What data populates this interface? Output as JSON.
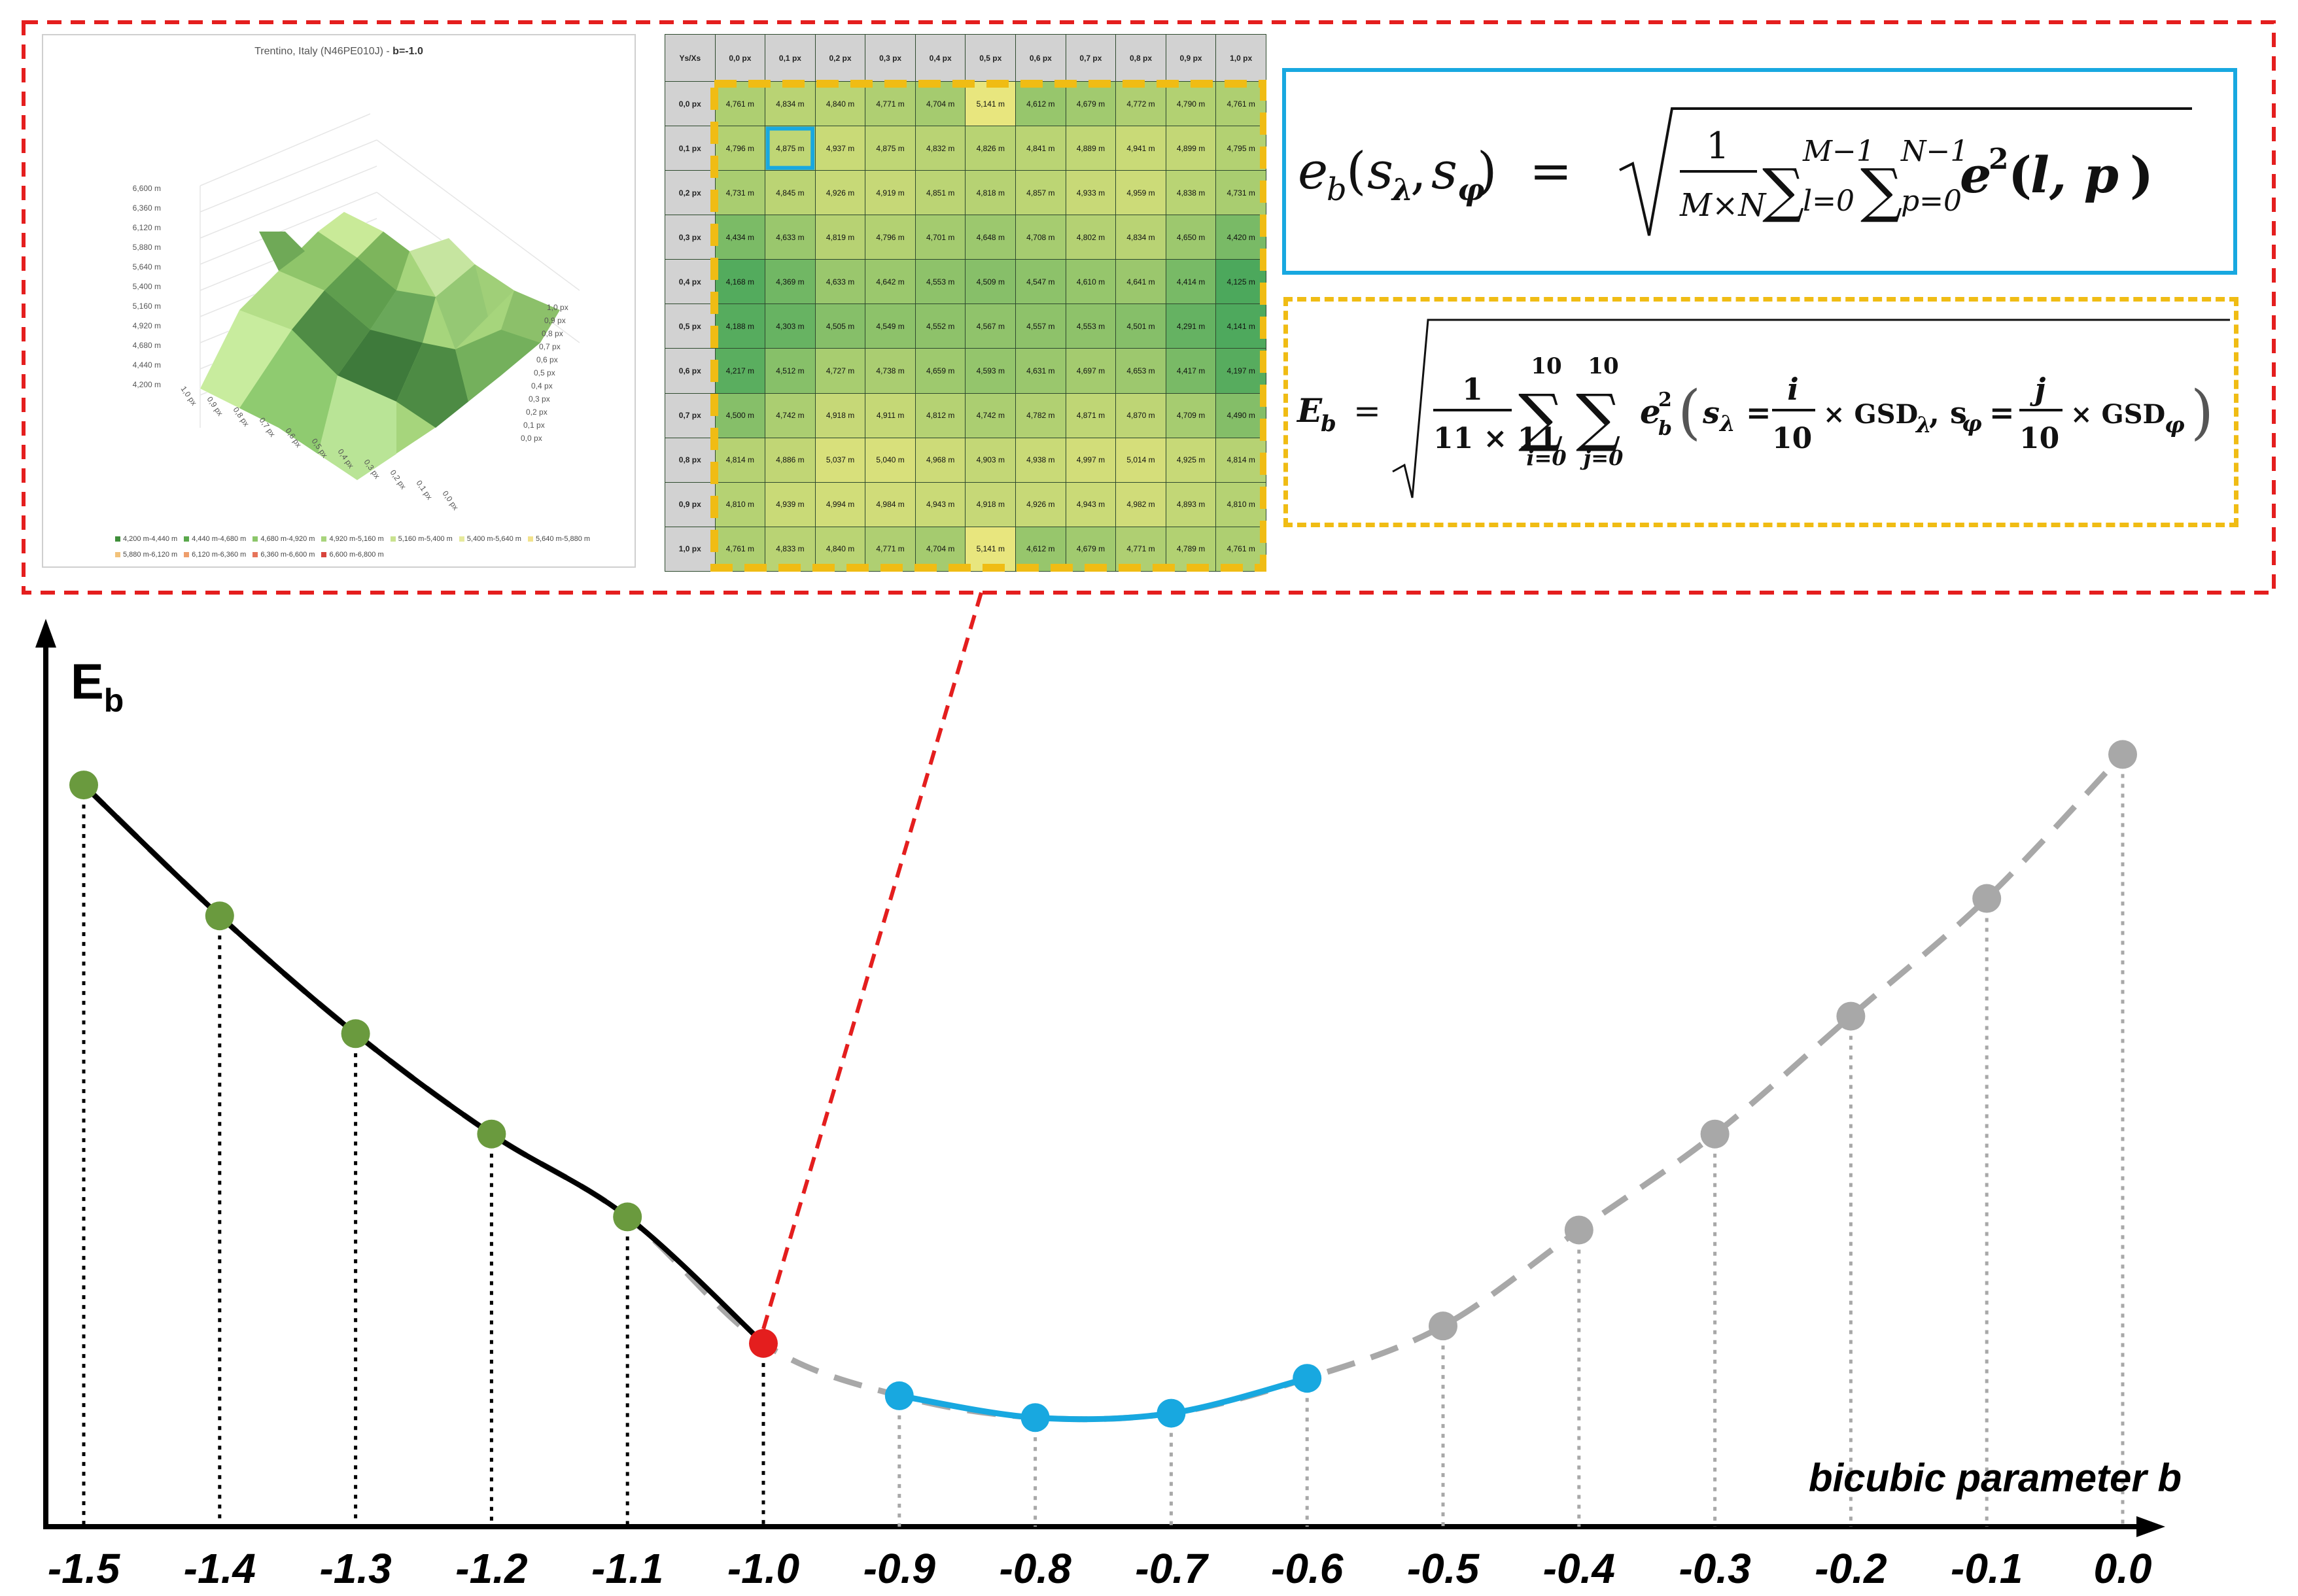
{
  "surface": {
    "title_prefix": "Trentino, Italy (N46PE010J) - ",
    "title_b": "b=-1.0",
    "z_ticks": [
      "6,600 m",
      "6,360 m",
      "6,120 m",
      "5,880 m",
      "5,640 m",
      "5,400 m",
      "5,160 m",
      "4,920 m",
      "4,680 m",
      "4,440 m",
      "4,200 m"
    ],
    "x_ticks": [
      "1,0 px",
      "0,9 px",
      "0,8 px",
      "0,7 px",
      "0,6 px",
      "0,5 px",
      "0,4 px",
      "0,3 px",
      "0,2 px",
      "0,1 px",
      "0,0 px"
    ],
    "y_ticks": [
      "1,0 px",
      "0,9 px",
      "0,8 px",
      "0,7 px",
      "0,6 px",
      "0,5 px",
      "0,4 px",
      "0,3 px",
      "0,2 px",
      "0,1 px",
      "0,0 px"
    ],
    "legend": [
      {
        "label": "4,200 m-4,440 m",
        "color": "#3f8e3a"
      },
      {
        "label": "4,440 m-4,680 m",
        "color": "#5aa84c"
      },
      {
        "label": "4,680 m-4,920 m",
        "color": "#8cc66a"
      },
      {
        "label": "4,920 m-5,160 m",
        "color": "#a8d47c"
      },
      {
        "label": "5,160 m-5,400 m",
        "color": "#c9e28f"
      },
      {
        "label": "5,400 m-5,640 m",
        "color": "#e6ea9c"
      },
      {
        "label": "5,640 m-5,880 m",
        "color": "#f2e28c"
      },
      {
        "label": "5,880 m-6,120 m",
        "color": "#f2c27a"
      },
      {
        "label": "6,120 m-6,360 m",
        "color": "#ee9e6c"
      },
      {
        "label": "6,360 m-6,600 m",
        "color": "#e6745a"
      },
      {
        "label": "6,600 m-6,800 m",
        "color": "#d8443c"
      }
    ]
  },
  "grid": {
    "corner": "Ys/Xs",
    "col_headers": [
      "0,0 px",
      "0,1 px",
      "0,2 px",
      "0,3 px",
      "0,4 px",
      "0,5 px",
      "0,6 px",
      "0,7 px",
      "0,8 px",
      "0,9 px",
      "1,0 px"
    ],
    "row_headers": [
      "0,0 px",
      "0,1 px",
      "0,2 px",
      "0,3 px",
      "0,4 px",
      "0,5 px",
      "0,6 px",
      "0,7 px",
      "0,8 px",
      "0,9 px",
      "1,0 px"
    ],
    "rows": [
      [
        "4,761 m",
        "4,834 m",
        "4,840 m",
        "4,771 m",
        "4,704 m",
        "5,141 m",
        "4,612 m",
        "4,679 m",
        "4,772 m",
        "4,790 m",
        "4,761 m"
      ],
      [
        "4,796 m",
        "4,875 m",
        "4,937 m",
        "4,875 m",
        "4,832 m",
        "4,826 m",
        "4,841 m",
        "4,889 m",
        "4,941 m",
        "4,899 m",
        "4,795 m"
      ],
      [
        "4,731 m",
        "4,845 m",
        "4,926 m",
        "4,919 m",
        "4,851 m",
        "4,818 m",
        "4,857 m",
        "4,933 m",
        "4,959 m",
        "4,838 m",
        "4,731 m"
      ],
      [
        "4,434 m",
        "4,633 m",
        "4,819 m",
        "4,796 m",
        "4,701 m",
        "4,648 m",
        "4,708 m",
        "4,802 m",
        "4,834 m",
        "4,650 m",
        "4,420 m"
      ],
      [
        "4,168 m",
        "4,369 m",
        "4,633 m",
        "4,642 m",
        "4,553 m",
        "4,509 m",
        "4,547 m",
        "4,610 m",
        "4,641 m",
        "4,414 m",
        "4,125 m"
      ],
      [
        "4,188 m",
        "4,303 m",
        "4,505 m",
        "4,549 m",
        "4,552 m",
        "4,567 m",
        "4,557 m",
        "4,553 m",
        "4,501 m",
        "4,291 m",
        "4,141 m"
      ],
      [
        "4,217 m",
        "4,512 m",
        "4,727 m",
        "4,738 m",
        "4,659 m",
        "4,593 m",
        "4,631 m",
        "4,697 m",
        "4,653 m",
        "4,417 m",
        "4,197 m"
      ],
      [
        "4,500 m",
        "4,742 m",
        "4,918 m",
        "4,911 m",
        "4,812 m",
        "4,742 m",
        "4,782 m",
        "4,871 m",
        "4,870 m",
        "4,709 m",
        "4,490 m"
      ],
      [
        "4,814 m",
        "4,886 m",
        "5,037 m",
        "5,040 m",
        "4,968 m",
        "4,903 m",
        "4,938 m",
        "4,997 m",
        "5,014 m",
        "4,925 m",
        "4,814 m"
      ],
      [
        "4,810 m",
        "4,939 m",
        "4,994 m",
        "4,984 m",
        "4,943 m",
        "4,918 m",
        "4,926 m",
        "4,943 m",
        "4,982 m",
        "4,893 m",
        "4,810 m"
      ],
      [
        "4,761 m",
        "4,833 m",
        "4,840 m",
        "4,771 m",
        "4,704 m",
        "5,141 m",
        "4,612 m",
        "4,679 m",
        "4,771 m",
        "4,789 m",
        "4,761 m"
      ]
    ],
    "highlight": [
      1,
      1
    ]
  },
  "colors": {
    "red": "#e41e1e",
    "blue": "#18a8e0",
    "yellow": "#f0bc14",
    "green_dot": "#6a9a3e",
    "grey": "#a8a8a8",
    "black": "#000000"
  },
  "chart_data": {
    "type": "line",
    "ylabel": "E",
    "ylabel_sub": "b",
    "xlabel": "bicubic parameter b",
    "x": [
      -1.5,
      -1.4,
      -1.3,
      -1.2,
      -1.1,
      -1.0,
      -0.9,
      -0.8,
      -0.7,
      -0.6,
      -0.5,
      -0.4,
      -0.3,
      -0.2,
      -0.1,
      0.0
    ],
    "x_tick_labels": [
      "-1.5",
      "-1.4",
      "-1.3",
      "-1.2",
      "-1.1",
      "-1.0",
      "-0.9",
      "-0.8",
      "-0.7",
      "-0.6",
      "-0.5",
      "-0.4",
      "-0.3",
      "-0.2",
      "-0.1",
      "0.0"
    ],
    "y_relative": [
      0.85,
      0.7,
      0.565,
      0.45,
      0.355,
      0.21,
      0.15,
      0.125,
      0.13,
      0.17,
      0.23,
      0.34,
      0.45,
      0.585,
      0.72,
      0.885
    ],
    "point_groups": [
      "green",
      "green",
      "green",
      "green",
      "green",
      "red",
      "blue",
      "blue",
      "blue",
      "blue",
      "grey",
      "grey",
      "grey",
      "grey",
      "grey",
      "grey"
    ],
    "xlim": [
      -1.55,
      0.05
    ],
    "ylim": [
      0,
      1
    ]
  }
}
